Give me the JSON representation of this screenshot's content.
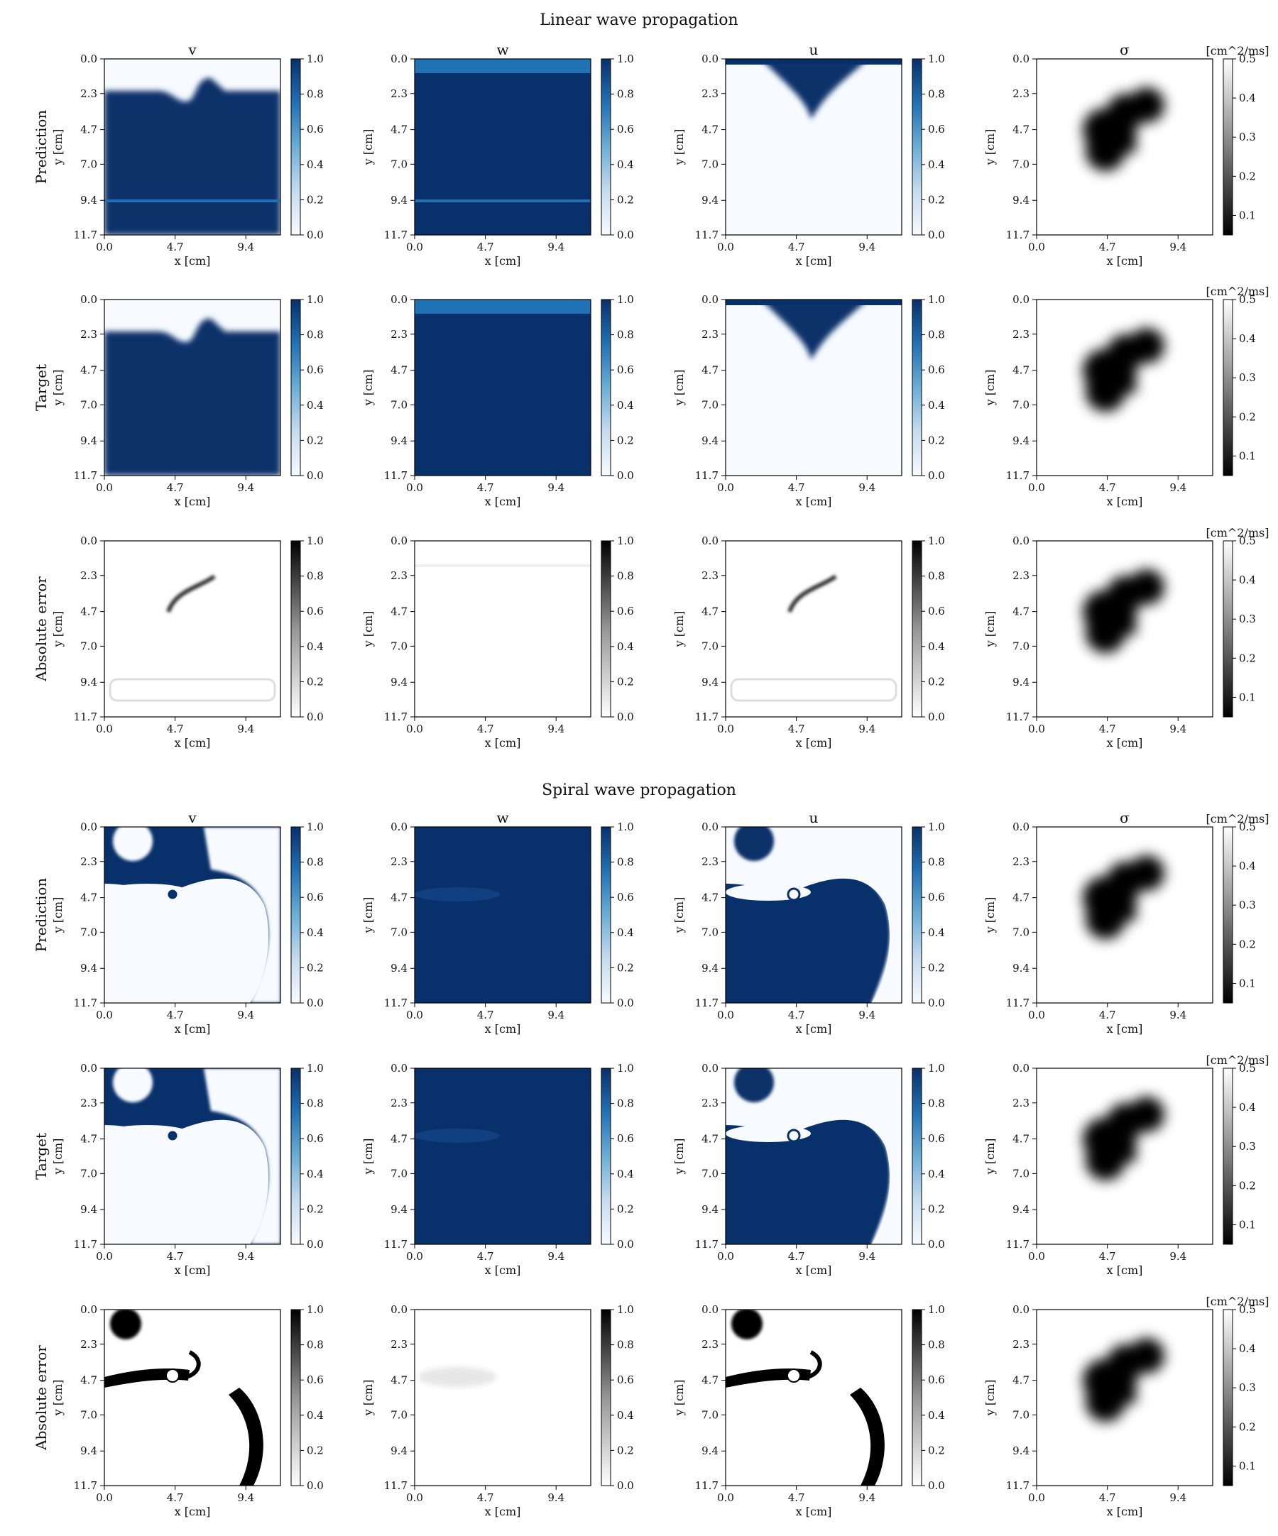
{
  "figure": {
    "sections": [
      {
        "title": "Linear wave propagation",
        "columns": [
          "v",
          "w",
          "u",
          "σ"
        ],
        "rows": [
          "Prediction",
          "Target",
          "Absolute error"
        ],
        "sigma_colorbar_unit": "[cm^2/ms]"
      },
      {
        "title": "Spiral wave propagation",
        "columns": [
          "v",
          "w",
          "u",
          "σ"
        ],
        "rows": [
          "Prediction",
          "Target",
          "Absolute error"
        ],
        "sigma_colorbar_unit": "[cm^2/ms]"
      }
    ]
  },
  "chart_data": {
    "type": "heatmap",
    "description_grid": "2 sections x 3 rows x 4 columns of field images",
    "xlabel": "x [cm]",
    "ylabel": "y [cm]",
    "x_ticks": [
      0.0,
      4.7,
      9.4
    ],
    "y_ticks": [
      0.0,
      2.3,
      4.7,
      7.0,
      9.4,
      11.7
    ],
    "xlim": [
      0.0,
      11.7
    ],
    "ylim": [
      11.7,
      0.0
    ],
    "field_colorbar": {
      "ticks": [
        0.0,
        0.2,
        0.4,
        0.6,
        0.8,
        1.0
      ],
      "range": [
        0.0,
        1.0
      ],
      "colormap_fields": "Blues",
      "colormap_error": "Greys"
    },
    "sigma_colorbar": {
      "ticks": [
        0.1,
        0.2,
        0.3,
        0.4,
        0.5
      ],
      "range": [
        0.05,
        0.5
      ],
      "colormap": "gray",
      "unit": "[cm^2/ms]"
    },
    "colors": {
      "dark_blue": "#08306b",
      "mid_blue": "#2171b5",
      "light_blue": "#f7fbff",
      "black": "#000000",
      "white": "#ffffff"
    }
  }
}
